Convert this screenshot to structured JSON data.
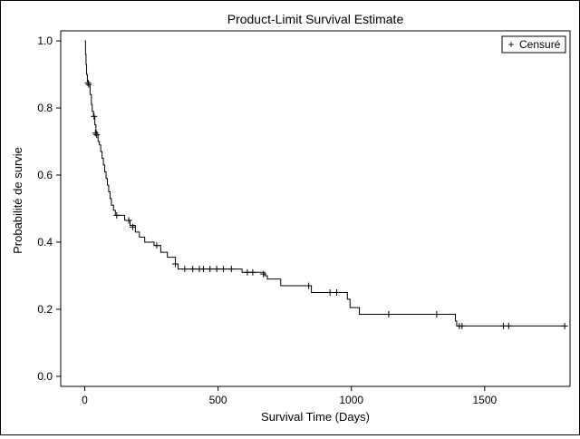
{
  "chart_data": {
    "type": "line",
    "step": true,
    "title": "Product-Limit Survival Estimate",
    "xlabel": "Survival Time (Days)",
    "ylabel": "Probabilité de survie",
    "xlim": [
      -90,
      1820
    ],
    "ylim": [
      -0.03,
      1.03
    ],
    "xticks": [
      0,
      500,
      1000,
      1500
    ],
    "yticks": [
      0.0,
      0.2,
      0.4,
      0.6,
      0.8,
      1.0
    ],
    "ytick_labels": [
      "0.0",
      "0.2",
      "0.4",
      "0.6",
      "0.8",
      "1.0"
    ],
    "grid": false,
    "legend": {
      "position": "top-right",
      "entries": [
        {
          "symbol": "+",
          "label": "Censuré"
        }
      ]
    },
    "colors": {
      "line": "#000000",
      "background": "#ffffff"
    },
    "series": [
      {
        "name": "Censuré",
        "steps": [
          [
            0,
            1.0
          ],
          [
            3,
            0.96
          ],
          [
            5,
            0.93
          ],
          [
            7,
            0.9
          ],
          [
            10,
            0.88
          ],
          [
            14,
            0.87
          ],
          [
            20,
            0.84
          ],
          [
            25,
            0.81
          ],
          [
            28,
            0.79
          ],
          [
            33,
            0.775
          ],
          [
            38,
            0.75
          ],
          [
            42,
            0.73
          ],
          [
            46,
            0.72
          ],
          [
            50,
            0.7
          ],
          [
            55,
            0.69
          ],
          [
            60,
            0.67
          ],
          [
            65,
            0.65
          ],
          [
            70,
            0.63
          ],
          [
            75,
            0.61
          ],
          [
            80,
            0.59
          ],
          [
            85,
            0.57
          ],
          [
            90,
            0.55
          ],
          [
            95,
            0.53
          ],
          [
            100,
            0.51
          ],
          [
            108,
            0.495
          ],
          [
            115,
            0.48
          ],
          [
            150,
            0.465
          ],
          [
            170,
            0.45
          ],
          [
            190,
            0.43
          ],
          [
            205,
            0.415
          ],
          [
            225,
            0.4
          ],
          [
            260,
            0.39
          ],
          [
            285,
            0.37
          ],
          [
            310,
            0.355
          ],
          [
            340,
            0.335
          ],
          [
            350,
            0.32
          ],
          [
            590,
            0.31
          ],
          [
            675,
            0.3
          ],
          [
            685,
            0.29
          ],
          [
            735,
            0.27
          ],
          [
            850,
            0.25
          ],
          [
            985,
            0.23
          ],
          [
            995,
            0.205
          ],
          [
            1030,
            0.185
          ],
          [
            1390,
            0.165
          ],
          [
            1395,
            0.15
          ]
        ],
        "end_x": 1800,
        "censored": [
          [
            12,
            0.875
          ],
          [
            15,
            0.87
          ],
          [
            35,
            0.775
          ],
          [
            40,
            0.725
          ],
          [
            45,
            0.72
          ],
          [
            120,
            0.48
          ],
          [
            165,
            0.465
          ],
          [
            180,
            0.445
          ],
          [
            270,
            0.39
          ],
          [
            340,
            0.335
          ],
          [
            375,
            0.32
          ],
          [
            405,
            0.32
          ],
          [
            430,
            0.32
          ],
          [
            445,
            0.32
          ],
          [
            470,
            0.32
          ],
          [
            495,
            0.32
          ],
          [
            520,
            0.32
          ],
          [
            550,
            0.32
          ],
          [
            610,
            0.31
          ],
          [
            630,
            0.31
          ],
          [
            670,
            0.305
          ],
          [
            840,
            0.27
          ],
          [
            920,
            0.25
          ],
          [
            945,
            0.25
          ],
          [
            1140,
            0.185
          ],
          [
            1320,
            0.185
          ],
          [
            1405,
            0.15
          ],
          [
            1415,
            0.15
          ],
          [
            1570,
            0.15
          ],
          [
            1590,
            0.15
          ],
          [
            1800,
            0.15
          ]
        ]
      }
    ]
  }
}
